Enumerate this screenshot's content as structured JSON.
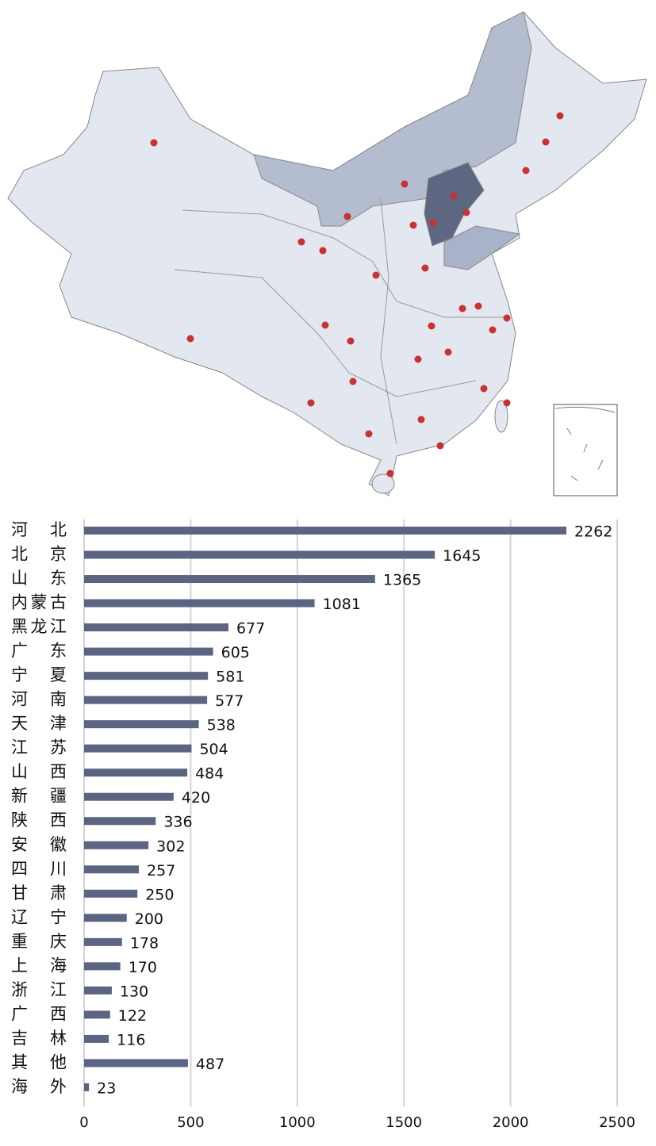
{
  "chart_data": {
    "type": "bar",
    "orientation": "horizontal",
    "categories": [
      "河 北",
      "北 京",
      "山 东",
      "内蒙古",
      "黑龙江",
      "广 东",
      "宁 夏",
      "河 南",
      "天 津",
      "江 苏",
      "山 西",
      "新 疆",
      "陕 西",
      "安 徽",
      "四 川",
      "甘 肃",
      "辽 宁",
      "重 庆",
      "上 海",
      "浙 江",
      "广 西",
      "吉 林",
      "其 他",
      "海 外"
    ],
    "values": [
      2262,
      1645,
      1365,
      1081,
      677,
      605,
      581,
      577,
      538,
      504,
      484,
      420,
      336,
      302,
      257,
      250,
      200,
      178,
      170,
      130,
      122,
      116,
      487,
      23
    ],
    "color": "#5b6582",
    "xlim": [
      0,
      2500
    ],
    "xticks": [
      0,
      500,
      1000,
      1500,
      2000,
      2500
    ],
    "grid": true
  }
}
